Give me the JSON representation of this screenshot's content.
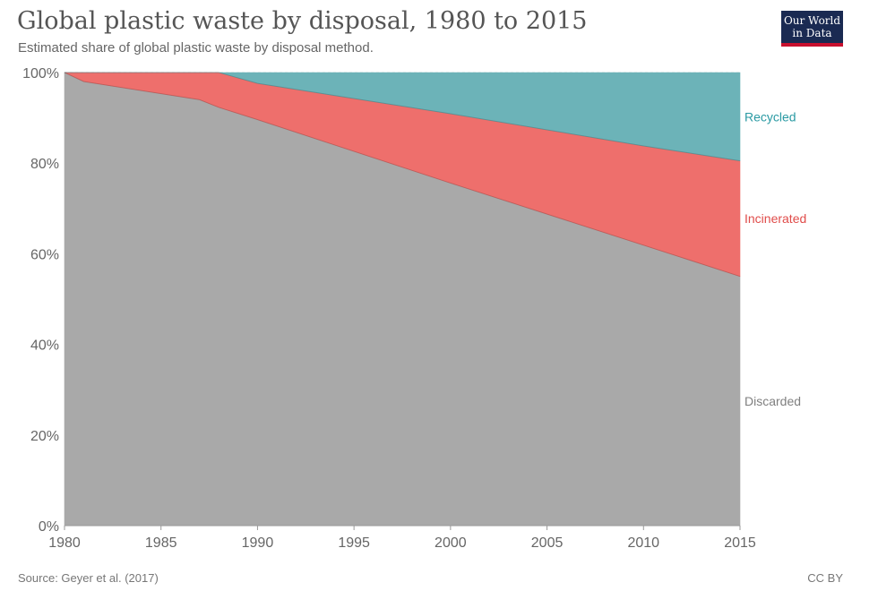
{
  "header": {
    "title": "Global plastic waste by disposal, 1980 to 2015",
    "subtitle": "Estimated share of global plastic waste by disposal method."
  },
  "logo": {
    "line1": "Our World",
    "line2": "in Data"
  },
  "footer": {
    "source": "Source: Geyer et al. (2017)",
    "license": "CC BY"
  },
  "chart_data": {
    "type": "area",
    "stacked": true,
    "title": "Global plastic waste by disposal, 1980 to 2015",
    "subtitle": "Estimated share of global plastic waste by disposal method.",
    "x": [
      1980,
      1981,
      1987,
      1988,
      1990,
      2000,
      2010,
      2015
    ],
    "xticks": [
      "1980",
      "1985",
      "1990",
      "1995",
      "2000",
      "2005",
      "2010",
      "2015"
    ],
    "yticks": [
      "0%",
      "20%",
      "40%",
      "60%",
      "80%",
      "100%"
    ],
    "xlim": [
      1980,
      2015
    ],
    "ylim": [
      0,
      100
    ],
    "grid": "horizontal dashed",
    "legend": "labels at right end of series",
    "series": [
      {
        "name": "Discarded",
        "color": "#a9a9a9",
        "label_color": "#7f7f7f",
        "values": [
          100,
          98,
          94,
          92.3,
          89.6,
          75.6,
          61.9,
          55
        ]
      },
      {
        "name": "Incinerated",
        "color": "#ee6f6c",
        "label_color": "#e04c4a",
        "values": [
          0,
          2,
          6,
          7.7,
          8,
          15.3,
          21.9,
          25.5
        ]
      },
      {
        "name": "Recycled",
        "color": "#6cb3b8",
        "label_color": "#2a9aa3",
        "values": [
          0,
          0,
          0,
          0,
          2.4,
          9.1,
          16.2,
          19.5
        ]
      }
    ]
  }
}
